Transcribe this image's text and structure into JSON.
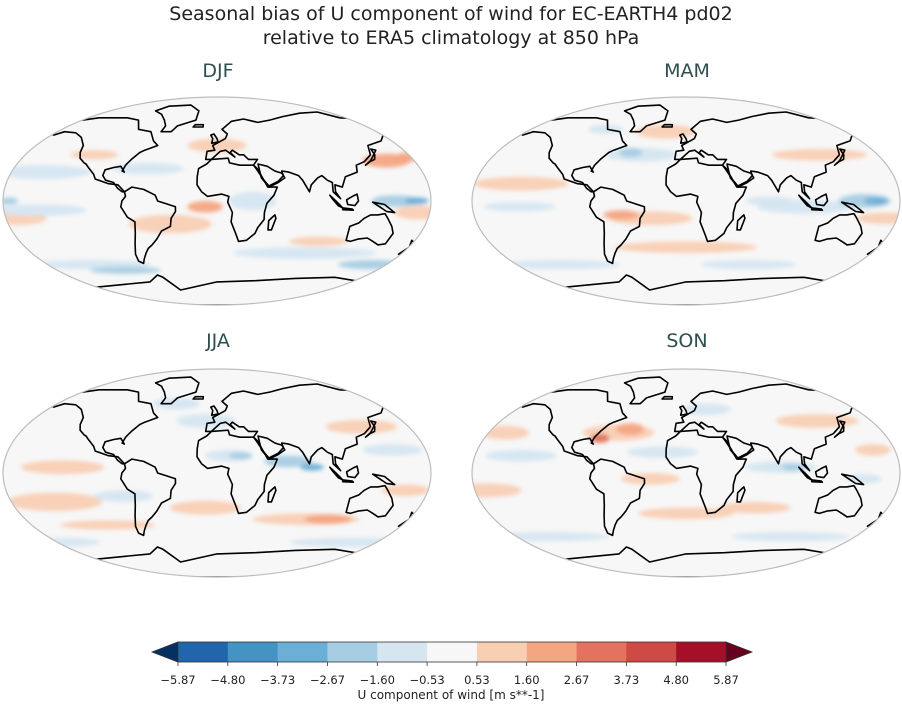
{
  "figure": {
    "title_line1": "Seasonal bias of U component of wind for EC-EARTH4 pd02",
    "title_line2": "relative to ERA5 climatology at 850 hPa"
  },
  "panels": [
    {
      "title": "DJF"
    },
    {
      "title": "MAM"
    },
    {
      "title": "JJA"
    },
    {
      "title": "SON"
    }
  ],
  "colorbar": {
    "label": "U component of wind [m s**-1]",
    "ticks": [
      "−5.87",
      "−4.80",
      "−3.73",
      "−2.67",
      "−1.60",
      "−0.53",
      "0.53",
      "1.60",
      "2.67",
      "3.73",
      "4.80",
      "5.87"
    ],
    "colors": [
      "#053061",
      "#2166ac",
      "#4393c3",
      "#6baed6",
      "#a6cde3",
      "#d5e6f1",
      "#f7f7f7",
      "#f9cfb4",
      "#f4a582",
      "#e3735e",
      "#ce4a44",
      "#a50f27",
      "#67001f"
    ]
  }
}
